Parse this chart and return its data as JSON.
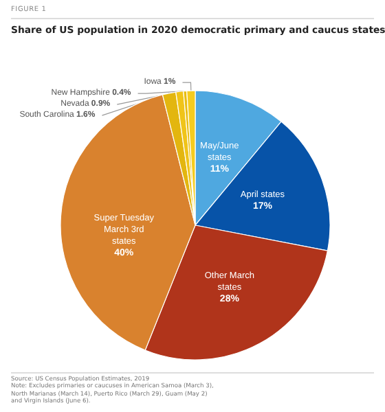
{
  "chart_data": {
    "type": "pie",
    "title": "Share of US population in 2020 democratic primary and caucus states",
    "categories": [
      "May/June states",
      "April states",
      "Other March states",
      "Super Tuesday March 3rd states",
      "South Carolina",
      "Nevada",
      "New Hampshire",
      "Iowa"
    ],
    "values": [
      11,
      17,
      28,
      40,
      1.6,
      0.9,
      0.4,
      1
    ],
    "value_labels": [
      "11%",
      "17%",
      "28%",
      "40%",
      "1.6%",
      "0.9%",
      "0.4%",
      "1%"
    ],
    "colors": [
      "#4fa8e0",
      "#0753a8",
      "#b0341b",
      "#d9822e",
      "#e3b60f",
      "#f0c419",
      "#e8bd14",
      "#f5cc1f"
    ],
    "legend": false,
    "annotations": [
      "FIGURE 1",
      "Source: US Census Population Estimates, 2019",
      "Note: Excludes primaries or caucuses in American Samoa (March 3), North Marianas (March 14), Puerto Rico (March 29), Guam (May 2) and Virgin Islands (June 6)."
    ]
  }
}
